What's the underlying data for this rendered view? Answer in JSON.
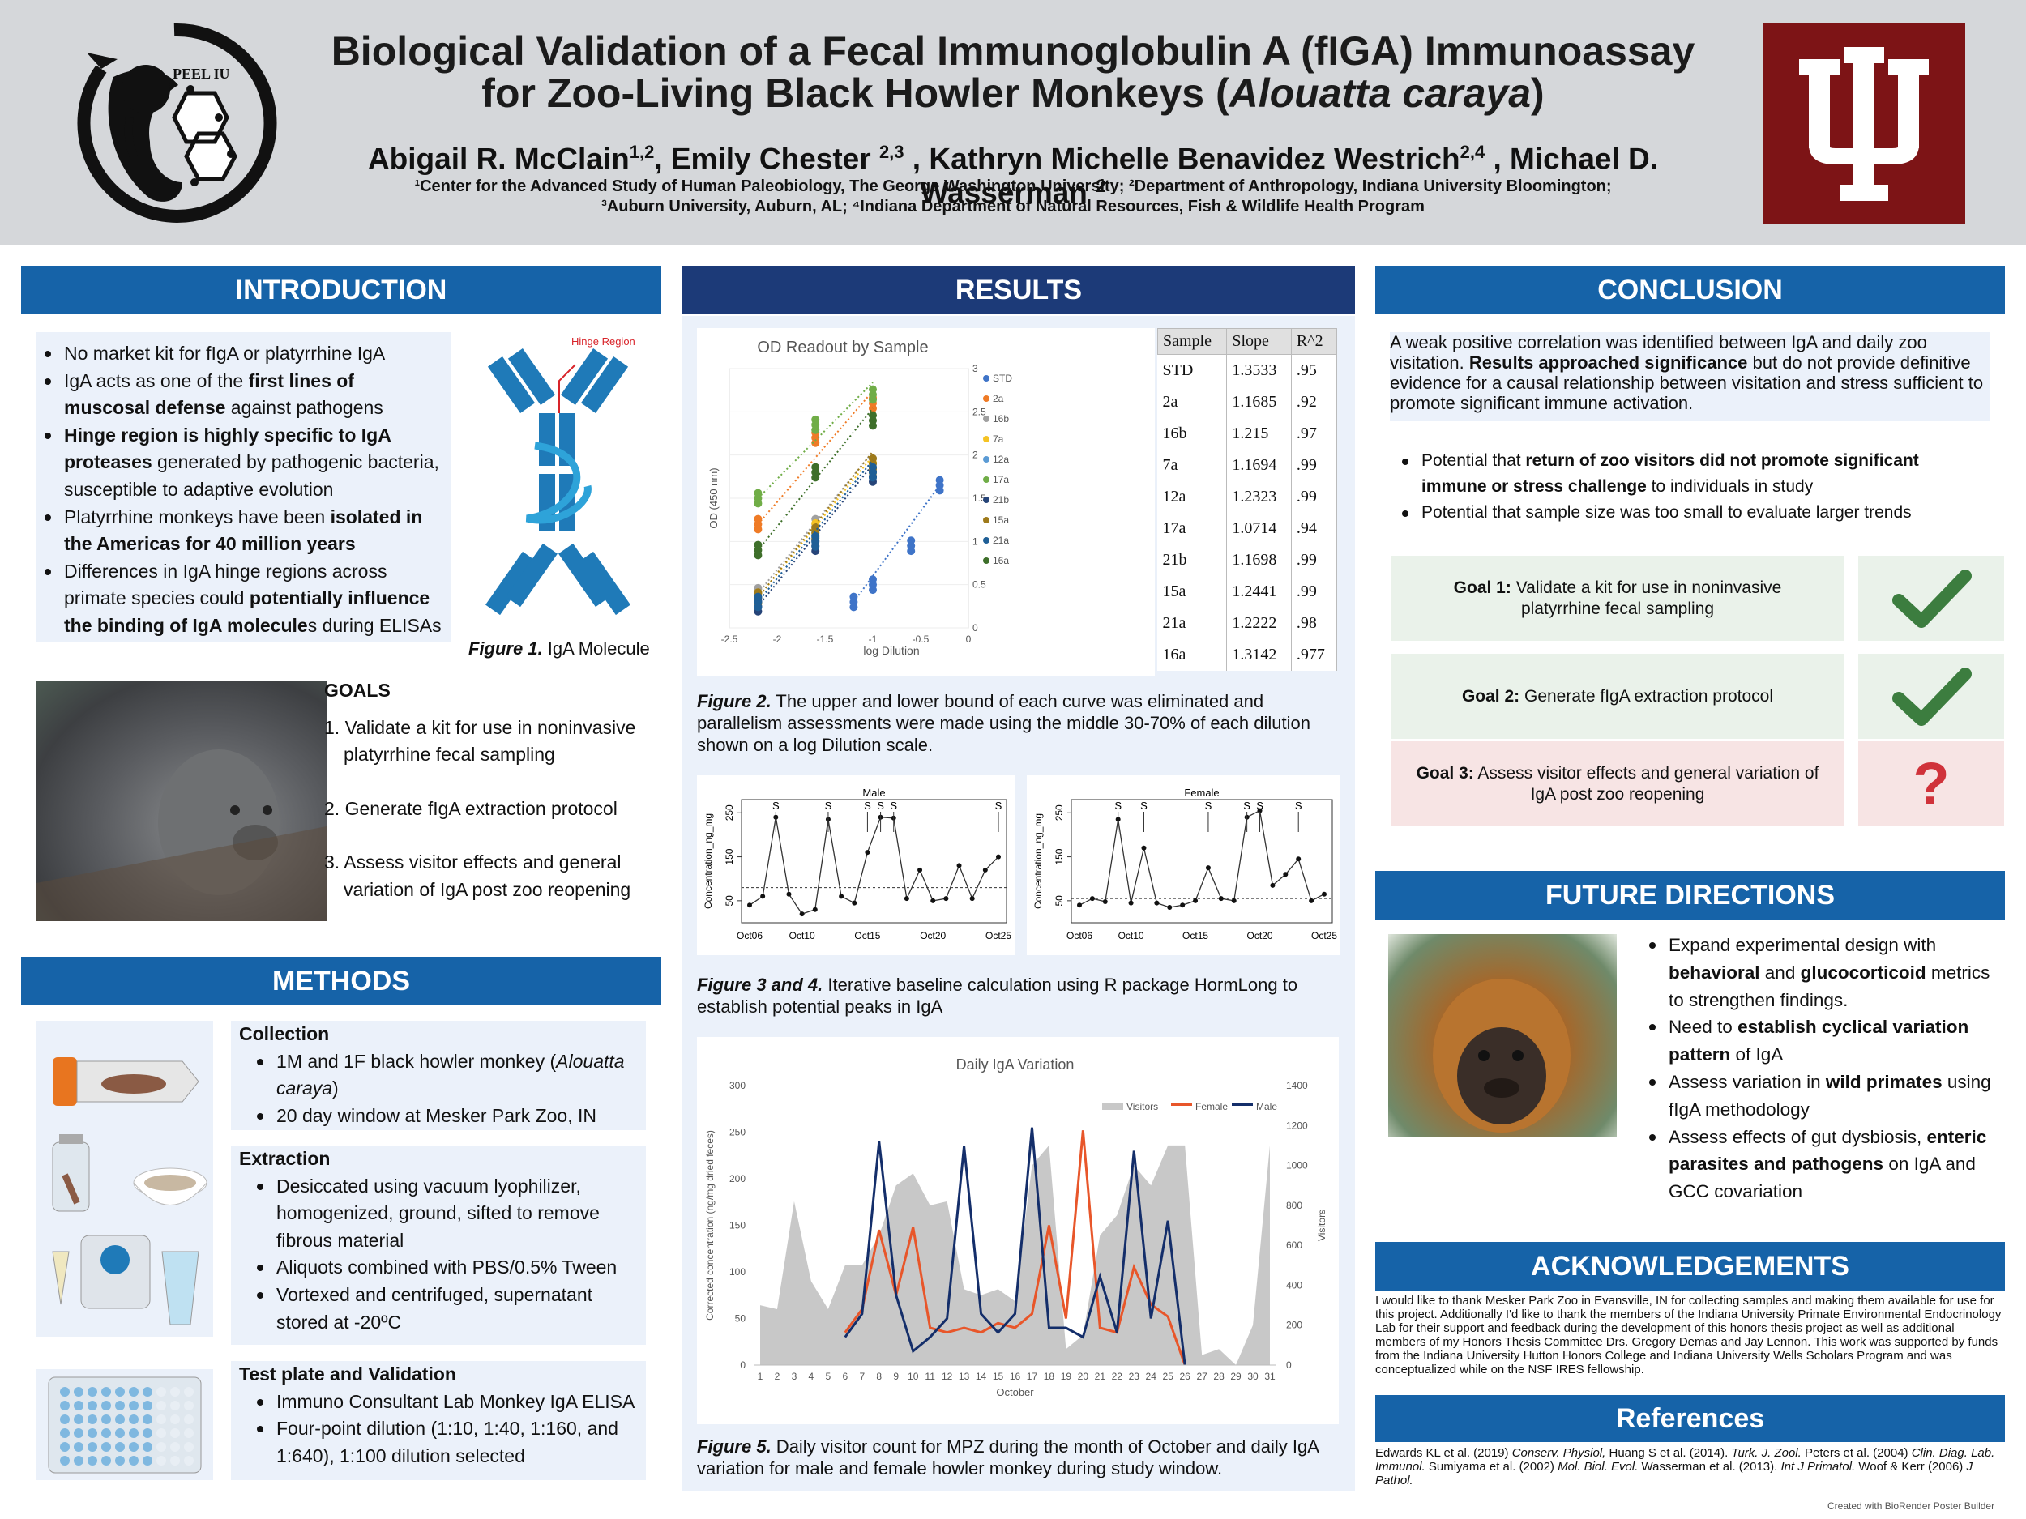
{
  "header": {
    "logo_left_text": "PEEL IU",
    "title_line1": "Biological Validation of a Fecal Immunoglobulin A (fIGA) Immunoassay",
    "title_line2a": "for Zoo-Living Black Howler Monkeys (",
    "title_line2b": "Alouatta caraya",
    "title_line2c": ")",
    "authors": [
      {
        "name": "Abigail R. McClain",
        "sup": "1,2",
        "sep": ", "
      },
      {
        "name": "Emily Chester ",
        "sup": "2,3",
        "sep": " , "
      },
      {
        "name": "Kathryn Michelle Benavidez Westrich",
        "sup": "2,4",
        "sep": " , "
      },
      {
        "name": "Michael D. Wasserman ",
        "sup": "2",
        "sep": ""
      }
    ],
    "affil_line1": "¹Center for the Advanced Study of Human Paleobiology, The George Washington University; ²Department of Anthropology, Indiana University Bloomington;",
    "affil_line2": "³Auburn University, Auburn, AL; ⁴Indiana Department of Natural Resources, Fish & Wildlife Health Program",
    "colors": {
      "header_bg": "#d5d7da",
      "iu_crimson": "#7d1416",
      "section_blue": "#1663a8",
      "results_navy": "#1c3a78",
      "panel_bg": "#ebf1fa"
    }
  },
  "introduction": {
    "heading": "INTRODUCTION",
    "bullets": [
      [
        {
          "t": "No market kit for fIgA or platyrrhine IgA"
        }
      ],
      [
        {
          "t": "IgA acts as one of the "
        },
        {
          "t": "first lines of muscosal defense",
          "b": true
        },
        {
          "t": " against pathogens"
        }
      ],
      [
        {
          "t": "Hinge region is highly specific to IgA proteases",
          "b": true
        },
        {
          "t": " generated by pathogenic bacteria, susceptible to adaptive evolution"
        }
      ],
      [
        {
          "t": "Platyrrhine monkeys have been "
        },
        {
          "t": "isolated in the Americas for 40 million years",
          "b": true
        }
      ],
      [
        {
          "t": "Differences in IgA hinge regions across primate species could "
        },
        {
          "t": "potentially influence the binding of IgA molecule",
          "b": true
        },
        {
          "t": "s during  ELISAs"
        }
      ]
    ],
    "figure_label": "Hinge Region",
    "figure_caption_bold": "Figure 1.",
    "figure_caption": " IgA Molecule",
    "goals_heading": "GOALS",
    "goals": [
      "1. Validate a kit for use in noninvasive platyrrhine fecal sampling",
      "2. Generate fIgA extraction protocol",
      "3. Assess visitor effects and general variation of IgA post zoo reopening"
    ]
  },
  "methods": {
    "heading": "METHODS",
    "collection_heading": "Collection",
    "collection": [
      [
        {
          "t": "1M and 1F  black howler monkey ("
        },
        {
          "t": "Alouatta caraya",
          "i": true
        },
        {
          "t": ")"
        }
      ],
      [
        {
          "t": "20 day window at Mesker Park Zoo, IN"
        }
      ]
    ],
    "extraction_heading": "Extraction",
    "extraction": [
      [
        {
          "t": "Desiccated using vacuum lyophilizer, homogenized, ground, sifted to remove fibrous material"
        }
      ],
      [
        {
          "t": "Aliquots combined with PBS/0.5% Tween"
        }
      ],
      [
        {
          "t": "Vortexed and centrifuged, supernatant stored at -20ºC"
        }
      ]
    ],
    "test_heading": "Test plate and Validation",
    "test": [
      [
        {
          "t": "Immuno Consultant Lab Monkey IgA ELISA"
        }
      ],
      [
        {
          "t": "Four-point dilution (1:10, 1:40, 1:160, and 1:640), 1:100 dilution selected"
        }
      ]
    ]
  },
  "results": {
    "heading": "RESULTS",
    "fig2_title": "OD Readout by Sample",
    "fig2_xlabel": "log Dilution",
    "fig2_ylabel": "OD (450 nm)",
    "fig2_caption_bold": "Figure 2.",
    "fig2_caption": " The upper and lower bound of each curve was eliminated and parallelism assessments were made using the middle 30-70% of each dilution shown on a log Dilution scale.",
    "table_headers": [
      "Sample",
      "Slope",
      "R^2"
    ],
    "table_rows": [
      [
        "STD",
        "1.3533",
        ".95"
      ],
      [
        "2a",
        "1.1685",
        ".92"
      ],
      [
        "16b",
        "1.215",
        ".97"
      ],
      [
        "7a",
        "1.1694",
        ".99"
      ],
      [
        "12a",
        "1.2323",
        ".99"
      ],
      [
        "17a",
        "1.0714",
        ".94"
      ],
      [
        "21b",
        "1.1698",
        ".99"
      ],
      [
        "15a",
        "1.2441",
        ".99"
      ],
      [
        "21a",
        "1.2222",
        ".98"
      ],
      [
        "16a",
        "1.3142",
        ".977"
      ]
    ],
    "fig34_caption_bold": "Figure 3 and 4.",
    "fig34_caption": "  Iterative baseline calculation using R package HormLong to establish potential peaks in IgA",
    "fig5_caption_bold": "Figure 5.",
    "fig5_caption": "  Daily visitor count for MPZ during the month of October and daily IgA variation for male and female howler monkey during study window."
  },
  "chart_data": [
    {
      "type": "scatter",
      "title": "OD Readout by Sample",
      "xlabel": "log Dilution",
      "ylabel": "OD (450 nm)",
      "xlim": [
        -2.5,
        0
      ],
      "ylim": [
        0,
        3
      ],
      "x_ticks": [
        "-2.5",
        "-2",
        "-1.5",
        "-1",
        "-0.5",
        "0"
      ],
      "y_ticks": [
        "0",
        "0.5",
        "1",
        "1.5",
        "2",
        "2.5",
        "3"
      ],
      "legend_position": "right",
      "series": [
        {
          "name": "STD",
          "color": "#3f74c8",
          "x": [
            -1.2,
            -1,
            -0.6,
            -0.3
          ],
          "y": [
            0.3,
            0.5,
            0.95,
            1.65
          ]
        },
        {
          "name": "2a",
          "color": "#ef7b26",
          "x": [
            -2.2,
            -1.6,
            -1
          ],
          "y": [
            1.2,
            2.2,
            2.6
          ]
        },
        {
          "name": "16b",
          "color": "#a0a0a0",
          "x": [
            -2.2,
            -1.6,
            -1
          ],
          "y": [
            0.4,
            1.2,
            1.9
          ]
        },
        {
          "name": "7a",
          "color": "#f5c324",
          "x": [
            -2.2,
            -1.6,
            -1
          ],
          "y": [
            0.35,
            1.15,
            1.85
          ]
        },
        {
          "name": "12a",
          "color": "#5b9bd5",
          "x": [
            -2.2,
            -1.6,
            -1
          ],
          "y": [
            0.3,
            1.05,
            1.8
          ]
        },
        {
          "name": "17a",
          "color": "#70ad47",
          "x": [
            -2.2,
            -1.6,
            -1
          ],
          "y": [
            1.5,
            2.35,
            2.7
          ]
        },
        {
          "name": "21b",
          "color": "#264478",
          "x": [
            -2.2,
            -1.6,
            -1
          ],
          "y": [
            0.25,
            0.95,
            1.75
          ]
        },
        {
          "name": "15a",
          "color": "#9e7a1a",
          "x": [
            -2.2,
            -1.6,
            -1
          ],
          "y": [
            0.35,
            1.1,
            1.9
          ]
        },
        {
          "name": "21a",
          "color": "#1f5f96",
          "x": [
            -2.2,
            -1.6,
            -1
          ],
          "y": [
            0.3,
            1.0,
            1.8
          ]
        },
        {
          "name": "16a",
          "color": "#3e6f2a",
          "x": [
            -2.2,
            -1.6,
            -1
          ],
          "y": [
            0.9,
            1.8,
            2.4
          ]
        }
      ]
    },
    {
      "type": "line",
      "title": "Male",
      "ylabel": "Concentration_ng_mg",
      "x_ticks": [
        "Oct06",
        "Oct10",
        "Oct15",
        "Oct20",
        "Oct25"
      ],
      "x": [
        "Oct06",
        "Oct07",
        "Oct08",
        "Oct09",
        "Oct10",
        "Oct11",
        "Oct12",
        "Oct13",
        "Oct14",
        "Oct15",
        "Oct16",
        "Oct17",
        "Oct18",
        "Oct19",
        "Oct20",
        "Oct21",
        "Oct22",
        "Oct23",
        "Oct24",
        "Oct25"
      ],
      "y": [
        40,
        60,
        240,
        65,
        20,
        30,
        235,
        60,
        45,
        160,
        240,
        238,
        55,
        120,
        50,
        55,
        130,
        55,
        120,
        150
      ],
      "y_ticks": [
        "50",
        "150",
        "250"
      ],
      "baseline": 80,
      "peak_markers": [
        "S",
        "S",
        "S",
        "S",
        "S",
        "S"
      ]
    },
    {
      "type": "line",
      "title": "Female",
      "ylabel": "Concentration_ng_mg",
      "x_ticks": [
        "Oct06",
        "Oct10",
        "Oct15",
        "Oct20",
        "Oct25"
      ],
      "x": [
        "Oct06",
        "Oct07",
        "Oct08",
        "Oct09",
        "Oct10",
        "Oct11",
        "Oct12",
        "Oct13",
        "Oct14",
        "Oct15",
        "Oct16",
        "Oct17",
        "Oct18",
        "Oct19",
        "Oct20",
        "Oct21",
        "Oct22",
        "Oct23",
        "Oct24",
        "Oct25"
      ],
      "y": [
        40,
        55,
        48,
        235,
        45,
        170,
        45,
        35,
        40,
        50,
        125,
        55,
        50,
        240,
        255,
        85,
        110,
        145,
        50,
        65
      ],
      "y_ticks": [
        "50",
        "150",
        "250"
      ],
      "baseline": 55,
      "peak_markers": [
        "S",
        "S",
        "S",
        "S",
        "S",
        "S"
      ]
    },
    {
      "type": "area",
      "title": "Daily IgA Variation",
      "xlabel": "October",
      "ylabel": "Corrected concentration (ng/mg dried feces)",
      "y2label": "Visitors",
      "ylim": [
        0,
        300
      ],
      "y2lim": [
        0,
        1400
      ],
      "y_ticks": [
        "0",
        "50",
        "100",
        "150",
        "200",
        "250",
        "300"
      ],
      "y2_ticks": [
        "0",
        "200",
        "400",
        "600",
        "800",
        "1000",
        "1200",
        "1400"
      ],
      "categories": [
        "1",
        "2",
        "3",
        "4",
        "5",
        "6",
        "7",
        "8",
        "9",
        "10",
        "11",
        "12",
        "13",
        "14",
        "15",
        "16",
        "17",
        "18",
        "19",
        "20",
        "21",
        "22",
        "23",
        "24",
        "25",
        "26",
        "27",
        "28",
        "29",
        "30",
        "31"
      ],
      "legend_position": "top-right",
      "series": [
        {
          "name": "Visitors",
          "color": "#c8c8c8",
          "axis": "right",
          "values": [
            300,
            280,
            820,
            420,
            280,
            500,
            500,
            650,
            900,
            960,
            800,
            820,
            380,
            350,
            380,
            320,
            1000,
            1100,
            80,
            150,
            650,
            750,
            1000,
            900,
            1100,
            1100,
            50,
            80,
            0,
            200,
            1100
          ]
        },
        {
          "name": "Female",
          "color": "#e8562a",
          "axis": "left",
          "values": [
            null,
            null,
            null,
            null,
            null,
            35,
            60,
            145,
            75,
            148,
            40,
            35,
            40,
            35,
            45,
            40,
            55,
            150,
            50,
            252,
            40,
            35,
            105,
            65,
            52,
            0,
            null,
            null,
            null,
            null,
            null
          ]
        },
        {
          "name": "Male",
          "color": "#142e6a",
          "axis": "left",
          "values": [
            null,
            null,
            null,
            null,
            null,
            30,
            55,
            240,
            75,
            15,
            30,
            50,
            235,
            55,
            35,
            55,
            255,
            40,
            40,
            30,
            95,
            35,
            230,
            50,
            155,
            0,
            null,
            null,
            null,
            null,
            null
          ]
        }
      ]
    }
  ],
  "conclusion": {
    "heading": "CONCLUSION",
    "summary": [
      {
        "t": "A weak positive correlation was identified between IgA and daily zoo visitation. "
      },
      {
        "t": "Results approached significance",
        "b": true
      },
      {
        "t": " but do not provide definitive evidence for a causal relationship between visitation and stress sufficient to promote significant immune activation."
      }
    ],
    "bullets": [
      [
        {
          "t": "Potential that "
        },
        {
          "t": "return of zoo visitors did not promote significant immune or stress challenge",
          "b": true
        },
        {
          "t": " to individuals in study"
        }
      ],
      [
        {
          "t": "Potential that sample size was too small to evaluate larger trends"
        }
      ]
    ],
    "goals": [
      {
        "label": "Goal 1:",
        "text": " Validate a kit for use in noninvasive platyrrhine fecal sampling",
        "status": "check-icon"
      },
      {
        "label": "Goal 2:",
        "text": " Generate fIgA extraction protocol",
        "status": "check-icon"
      },
      {
        "label": "Goal 3:",
        "text": " Assess visitor effects and general variation of IgA post zoo reopening",
        "status": "?"
      }
    ]
  },
  "future": {
    "heading": "FUTURE DIRECTIONS",
    "bullets": [
      [
        {
          "t": "Expand experimental design with "
        },
        {
          "t": "behavioral",
          "b": true
        },
        {
          "t": " and "
        },
        {
          "t": "glucocorticoid",
          "b": true
        },
        {
          "t": " metrics to strengthen findings."
        }
      ],
      [
        {
          "t": "Need to "
        },
        {
          "t": "establish cyclical variation pattern",
          "b": true
        },
        {
          "t": " of IgA"
        }
      ],
      [
        {
          "t": "Assess variation in "
        },
        {
          "t": "wild primates",
          "b": true
        },
        {
          "t": " using fIgA methodology"
        }
      ],
      [
        {
          "t": "Assess effects of gut dysbiosis, "
        },
        {
          "t": "enteric parasites and pathogens",
          "b": true
        },
        {
          "t": " on IgA and GCC covariation"
        }
      ]
    ]
  },
  "acknowledgements": {
    "heading": "ACKNOWLEDGEMENTS",
    "text": "I would like to thank Mesker Park Zoo in Evansville, IN for collecting samples and making them available for use for this project. Additionally I'd like to thank the members of the Indiana University Primate Environmental Endocrinology Lab for their support and feedback during the development of this honors thesis project as well as additional members of my Honors Thesis Committee Drs. Gregory Demas and Jay Lennon.  This work was supported by funds from the Indiana University Hutton Honors College and Indiana University Wells Scholars Program and was conceptualized while on the NSF IRES fellowship."
  },
  "references": {
    "heading": "References",
    "items": [
      {
        "t": "Edwards KL et al. (2019) "
      },
      {
        "t": "Conserv. Physiol,",
        "i": true
      },
      {
        "t": " Huang S et al. (2014). "
      },
      {
        "t": "Turk. J. Zool.",
        "i": true
      },
      {
        "t": " Peters et al. (2004) "
      },
      {
        "t": "Clin. Diag. Lab. Immunol.",
        "i": true
      },
      {
        "t": " Sumiyama et al. (2002) "
      },
      {
        "t": "Mol. Biol. Evol.",
        "i": true
      },
      {
        "t": "  Wasserman et al. (2013). "
      },
      {
        "t": "Int J Primatol.",
        "i": true
      },
      {
        "t": " Woof & Kerr (2006) "
      },
      {
        "t": "J Pathol.",
        "i": true
      }
    ]
  },
  "footer": {
    "credit": "Created with BioRender Poster Builder"
  }
}
